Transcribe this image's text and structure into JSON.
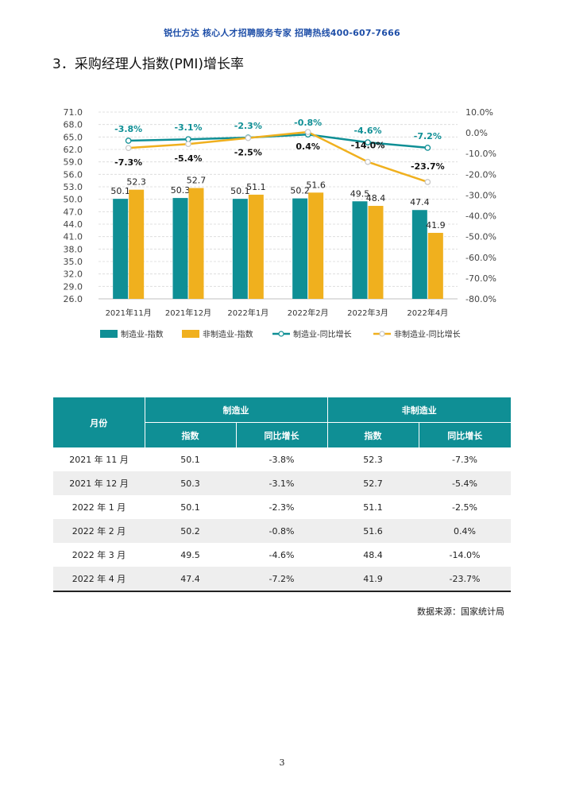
{
  "header": {
    "banner": "锐仕方达 核心人才招聘服务专家 招聘热线400-607-7666"
  },
  "section": {
    "title": "3．采购经理人指数(PMI)增长率"
  },
  "colors": {
    "teal": "#0f8f95",
    "gold": "#f0b01e",
    "header_text": "#1f4fa8"
  },
  "chart_data": {
    "type": "bar",
    "categories": [
      "2021年11月",
      "2021年12月",
      "2022年1月",
      "2022年2月",
      "2022年3月",
      "2022年4月"
    ],
    "left_axis": {
      "min": 26.0,
      "max": 71.0,
      "step": 3.0,
      "ticks": [
        "71.0",
        "68.0",
        "65.0",
        "62.0",
        "59.0",
        "56.0",
        "53.0",
        "50.0",
        "47.0",
        "44.0",
        "41.0",
        "38.0",
        "35.0",
        "32.0",
        "29.0",
        "26.0"
      ]
    },
    "right_axis": {
      "min": -80,
      "max": 10,
      "step": 10,
      "ticks": [
        "10.0%",
        "0.0%",
        "-10.0%",
        "-20.0%",
        "-30.0%",
        "-40.0%",
        "-50.0%",
        "-60.0%",
        "-70.0%",
        "-80.0%"
      ]
    },
    "series": [
      {
        "name": "制造业-指数",
        "kind": "bar",
        "axis": "left",
        "color": "#0f8f95",
        "values": [
          50.1,
          50.3,
          50.1,
          50.2,
          49.5,
          47.4
        ],
        "labels": [
          "50.1",
          "50.3",
          "50.1",
          "50.2",
          "49.5",
          "47.4"
        ]
      },
      {
        "name": "非制造业-指数",
        "kind": "bar",
        "axis": "left",
        "color": "#f0b01e",
        "values": [
          52.3,
          52.7,
          51.1,
          51.6,
          48.4,
          41.9
        ],
        "labels": [
          "52.3",
          "52.7",
          "51.1",
          "51.6",
          "48.4",
          "41.9"
        ]
      },
      {
        "name": "制造业-同比增长",
        "kind": "line",
        "axis": "right",
        "color": "#0f8f95",
        "values": [
          -3.8,
          -3.1,
          -2.3,
          -0.8,
          -4.6,
          -7.2
        ],
        "labels": [
          "-3.8%",
          "-3.1%",
          "-2.3%",
          "-0.8%",
          "-4.6%",
          "-7.2%"
        ]
      },
      {
        "name": "非制造业-同比增长",
        "kind": "line",
        "axis": "right",
        "color": "#f0b01e",
        "values": [
          -7.3,
          -5.4,
          -2.5,
          0.4,
          -14.0,
          -23.7
        ],
        "labels": [
          "-7.3%",
          "-5.4%",
          "-2.5%",
          "0.4%",
          "-14.0%",
          "-23.7%"
        ]
      }
    ],
    "grid": true,
    "legend_position": "bottom"
  },
  "table": {
    "header_month": "月份",
    "header_mfg": "制造业",
    "header_nonmfg": "非制造业",
    "sub_index": "指数",
    "sub_yoy": "同比增长",
    "rows": [
      {
        "month": "2021 年 11 月",
        "mfg_index": "50.1",
        "mfg_yoy": "-3.8%",
        "nonmfg_index": "52.3",
        "nonmfg_yoy": "-7.3%"
      },
      {
        "month": "2021 年 12 月",
        "mfg_index": "50.3",
        "mfg_yoy": "-3.1%",
        "nonmfg_index": "52.7",
        "nonmfg_yoy": "-5.4%"
      },
      {
        "month": "2022 年 1 月",
        "mfg_index": "50.1",
        "mfg_yoy": "-2.3%",
        "nonmfg_index": "51.1",
        "nonmfg_yoy": "-2.5%"
      },
      {
        "month": "2022 年 2 月",
        "mfg_index": "50.2",
        "mfg_yoy": "-0.8%",
        "nonmfg_index": "51.6",
        "nonmfg_yoy": "0.4%"
      },
      {
        "month": "2022 年 3 月",
        "mfg_index": "49.5",
        "mfg_yoy": "-4.6%",
        "nonmfg_index": "48.4",
        "nonmfg_yoy": "-14.0%"
      },
      {
        "month": "2022 年 4 月",
        "mfg_index": "47.4",
        "mfg_yoy": "-7.2%",
        "nonmfg_index": "41.9",
        "nonmfg_yoy": "-23.7%"
      }
    ]
  },
  "source": "数据来源：国家统计局",
  "page_number": "3"
}
